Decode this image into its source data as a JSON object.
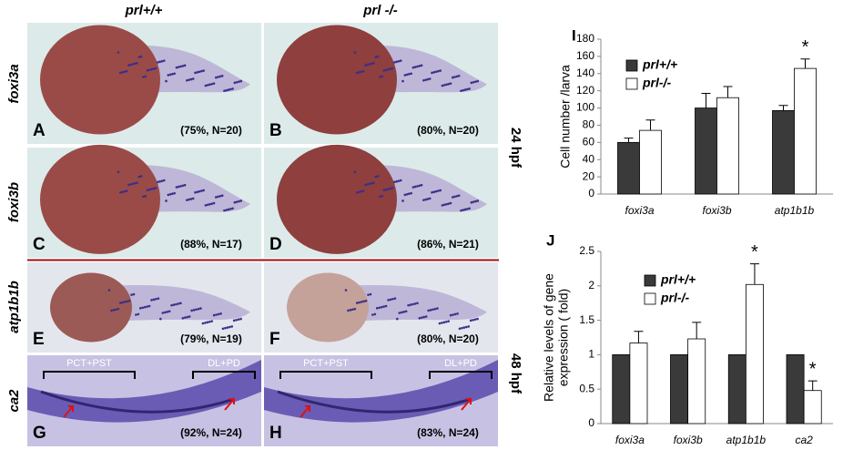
{
  "figure": {
    "column_headers": [
      "prl+/+",
      "prl -/-"
    ],
    "row_labels": [
      "foxi3a",
      "foxi3b",
      "atp1b1b",
      "ca2"
    ],
    "stage_labels": [
      "24 hpf",
      "48 hpf"
    ],
    "segment_labels": [
      "PCT+PST",
      "DL+PD"
    ],
    "panels": [
      {
        "letter": "A",
        "caption": "(75%, N=20)"
      },
      {
        "letter": "B",
        "caption": "(80%, N=20)"
      },
      {
        "letter": "C",
        "caption": "(88%, N=17)"
      },
      {
        "letter": "D",
        "caption": "(86%, N=21)"
      },
      {
        "letter": "E",
        "caption": "(79%, N=19)"
      },
      {
        "letter": "F",
        "caption": "(80%, N=20)"
      },
      {
        "letter": "G",
        "caption": "(92%, N=24)"
      },
      {
        "letter": "H",
        "caption": "(83%, N=24)"
      }
    ]
  },
  "chart_data": [
    {
      "type": "bar",
      "title": "I",
      "y_label": [
        "Cell number /larva"
      ],
      "categories": [
        "foxi3a",
        "foxi3b",
        "atp1b1b"
      ],
      "series": [
        {
          "name": "prl+/+",
          "color": "#3a3a3a",
          "values": [
            60,
            100,
            97
          ],
          "errors": [
            5,
            17,
            6
          ]
        },
        {
          "name": "prl-/-",
          "color": "#ffffff",
          "values": [
            74,
            112,
            146
          ],
          "errors": [
            12,
            13,
            11
          ],
          "significance_labels": [
            null,
            null,
            "*"
          ]
        }
      ],
      "ylim": [
        0,
        180
      ],
      "yticks": [
        0,
        20,
        40,
        60,
        80,
        100,
        120,
        140,
        160,
        180
      ]
    },
    {
      "type": "bar",
      "title": "J",
      "y_label": [
        "Relative levels of gene",
        "expression ( fold)"
      ],
      "categories": [
        "foxi3a",
        "foxi3b",
        "atp1b1b",
        "ca2"
      ],
      "series": [
        {
          "name": "prl+/+",
          "color": "#3a3a3a",
          "values": [
            1,
            1,
            1,
            1
          ],
          "errors": [
            0,
            0,
            0,
            0
          ]
        },
        {
          "name": "prl-/-",
          "color": "#ffffff",
          "values": [
            1.17,
            1.23,
            2.02,
            0.48
          ],
          "errors": [
            0.17,
            0.24,
            0.3,
            0.14
          ],
          "significance_labels": [
            null,
            null,
            "*",
            "*"
          ]
        }
      ],
      "ylim": [
        0,
        2.5
      ],
      "yticks": [
        0,
        0.5,
        1,
        1.5,
        2,
        2.5
      ]
    }
  ]
}
